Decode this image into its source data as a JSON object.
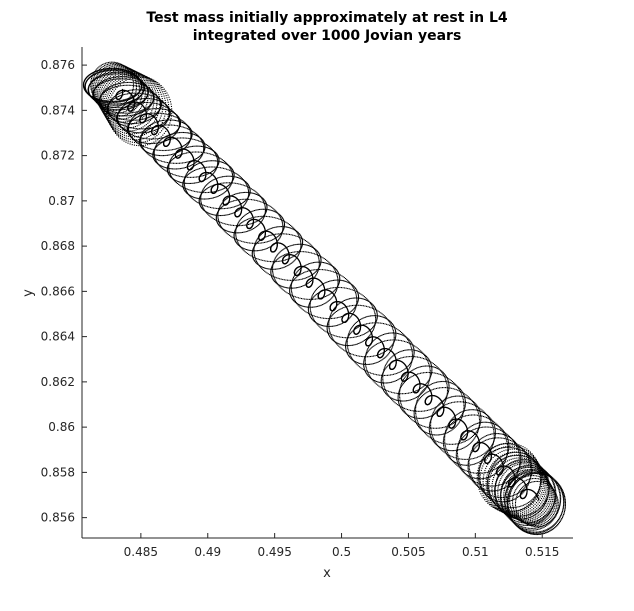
{
  "chart_data": {
    "type": "scatter",
    "title": [
      "Test mass initially approximately at rest in L4",
      "integrated over 1000 Jovian years"
    ],
    "xlabel": "x",
    "ylabel": "y",
    "xlim": [
      0.4806,
      0.5173
    ],
    "ylim": [
      0.8551,
      0.8768
    ],
    "xticks": [
      0.485,
      0.49,
      0.495,
      0.5,
      0.505,
      0.51,
      0.515
    ],
    "xtick_labels": [
      "0.485",
      "0.49",
      "0.495",
      "0.5",
      "0.505",
      "0.51",
      "0.515"
    ],
    "yticks": [
      0.856,
      0.858,
      0.86,
      0.862,
      0.864,
      0.866,
      0.868,
      0.87,
      0.872,
      0.874,
      0.876
    ],
    "ytick_labels": [
      "0.856",
      "0.858",
      "0.86",
      "0.862",
      "0.864",
      "0.866",
      "0.868",
      "0.87",
      "0.872",
      "0.874",
      "0.876"
    ],
    "grid": false,
    "marker_color": "#000000",
    "trajectory": {
      "endpoint_a": [
        0.48285,
        0.87513
      ],
      "endpoint_b": [
        0.5146,
        0.8566
      ],
      "libration_epicycle_radius_x": 0.00215,
      "libration_epicycle_radius_y": 0.00073,
      "libration_epicycle_radius_y_end": 0.00135,
      "axis_epicycle_radius_x": 0.00045,
      "axis_epicycle_radius_y": 0.00032,
      "epicycle_count": 70
    }
  }
}
